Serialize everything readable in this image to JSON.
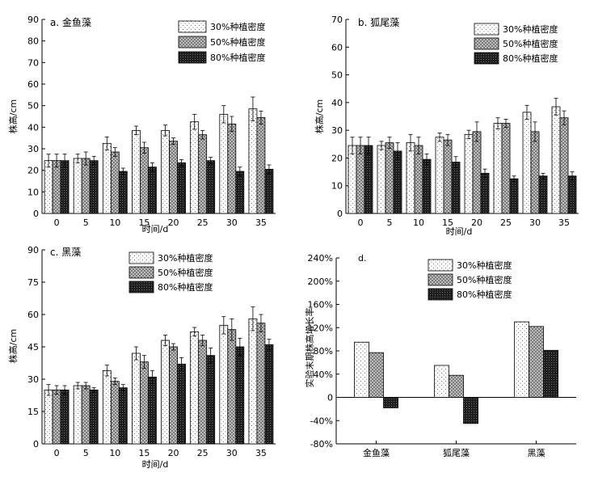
{
  "legend": [
    "30%种植密度",
    "50%种植密度",
    "80%种植密度"
  ],
  "colors": {
    "s30": "#ffffff",
    "s50": "#a8a8a8",
    "s80": "#2b2b2b",
    "axis": "#000000"
  },
  "chart_data": [
    {
      "id": "a",
      "type": "bar",
      "title": "a. 金鱼藻",
      "xlabel": "时间/d",
      "ylabel": "株高/cm",
      "categories": [
        "0",
        "5",
        "10",
        "15",
        "20",
        "25",
        "30",
        "35"
      ],
      "ylim": [
        0,
        90
      ],
      "yticks": [
        0,
        10,
        20,
        30,
        40,
        50,
        60,
        70,
        80,
        90
      ],
      "series": [
        {
          "name": "30%种植密度",
          "values": [
            24.5,
            25.5,
            32.5,
            38.5,
            38.5,
            42.5,
            46,
            48.5
          ],
          "errors": [
            3,
            2,
            3,
            2,
            2.5,
            3.5,
            4,
            5.5
          ]
        },
        {
          "name": "50%种植密度",
          "values": [
            24.5,
            25.5,
            28.5,
            30.5,
            33.5,
            36.5,
            41.5,
            44.5
          ],
          "errors": [
            3,
            3,
            2,
            2.5,
            1.5,
            2,
            3.5,
            3
          ]
        },
        {
          "name": "80%种植密度",
          "values": [
            24.5,
            24.5,
            19.5,
            21.5,
            23.5,
            24.5,
            19.5,
            20.5
          ],
          "errors": [
            3,
            2,
            1.5,
            2,
            1.5,
            1.5,
            2,
            2
          ]
        }
      ]
    },
    {
      "id": "b",
      "type": "bar",
      "title": "b. 狐尾藻",
      "xlabel": "时间/d",
      "ylabel": "株高/cm",
      "categories": [
        "0",
        "5",
        "10",
        "15",
        "20",
        "25",
        "30",
        "35"
      ],
      "ylim": [
        0,
        70
      ],
      "yticks": [
        0,
        10,
        20,
        30,
        40,
        50,
        60,
        70
      ],
      "series": [
        {
          "name": "30%种植密度",
          "values": [
            24.5,
            24.5,
            25.5,
            27.5,
            28.5,
            32.5,
            36.5,
            38.5
          ],
          "errors": [
            3,
            1.5,
            3,
            1.5,
            1.5,
            2,
            2.5,
            3
          ]
        },
        {
          "name": "50%种植密度",
          "values": [
            24.5,
            25.5,
            24.5,
            26.5,
            29.5,
            32.5,
            29.5,
            34.5
          ],
          "errors": [
            3,
            2,
            3,
            2,
            3.5,
            1.5,
            3.5,
            2.5
          ]
        },
        {
          "name": "80%种植密度",
          "values": [
            24.5,
            22.5,
            19.5,
            18.5,
            14.5,
            12.5,
            13.5,
            13.5
          ],
          "errors": [
            3,
            3,
            2,
            2,
            1.5,
            1,
            1,
            1.5
          ]
        }
      ]
    },
    {
      "id": "c",
      "type": "bar",
      "title": "c. 黑藻",
      "xlabel": "时间/d",
      "ylabel": "株高/cm",
      "categories": [
        "0",
        "5",
        "10",
        "15",
        "20",
        "25",
        "30",
        "35"
      ],
      "ylim": [
        0,
        90
      ],
      "yticks": [
        0,
        15,
        30,
        45,
        60,
        75,
        90
      ],
      "series": [
        {
          "name": "30%种植密度",
          "values": [
            25,
            27,
            34,
            42,
            48,
            52,
            55,
            58
          ],
          "errors": [
            2.5,
            1.5,
            2.5,
            3,
            2.5,
            2,
            4,
            5.5
          ]
        },
        {
          "name": "50%种植密度",
          "values": [
            25,
            27,
            29,
            38,
            45,
            48,
            53,
            56
          ],
          "errors": [
            2,
            1.5,
            1.5,
            3,
            1.5,
            2.5,
            5,
            4
          ]
        },
        {
          "name": "80%种植密度",
          "values": [
            25,
            25,
            26,
            31,
            37,
            41,
            45,
            46
          ],
          "errors": [
            2,
            1,
            1.5,
            3,
            3,
            3.5,
            4,
            2.5
          ]
        }
      ]
    },
    {
      "id": "d",
      "type": "bar",
      "title": "d.",
      "xlabel": "",
      "ylabel": "实验末期株高增长率",
      "categories": [
        "金鱼藻",
        "狐尾藻",
        "黑藻"
      ],
      "ylim": [
        -80,
        240
      ],
      "yticks": [
        -80,
        -40,
        0,
        40,
        80,
        120,
        160,
        200,
        240
      ],
      "ytick_labels": [
        "-80%",
        "-40%",
        "0",
        "40%",
        "80%",
        "120%",
        "160%",
        "200%",
        "240%"
      ],
      "series": [
        {
          "name": "30%种植密度",
          "values": [
            95,
            55,
            130
          ]
        },
        {
          "name": "50%种植密度",
          "values": [
            77,
            38,
            122
          ]
        },
        {
          "name": "80%种植密度",
          "values": [
            -18,
            -45,
            81
          ]
        }
      ]
    }
  ]
}
